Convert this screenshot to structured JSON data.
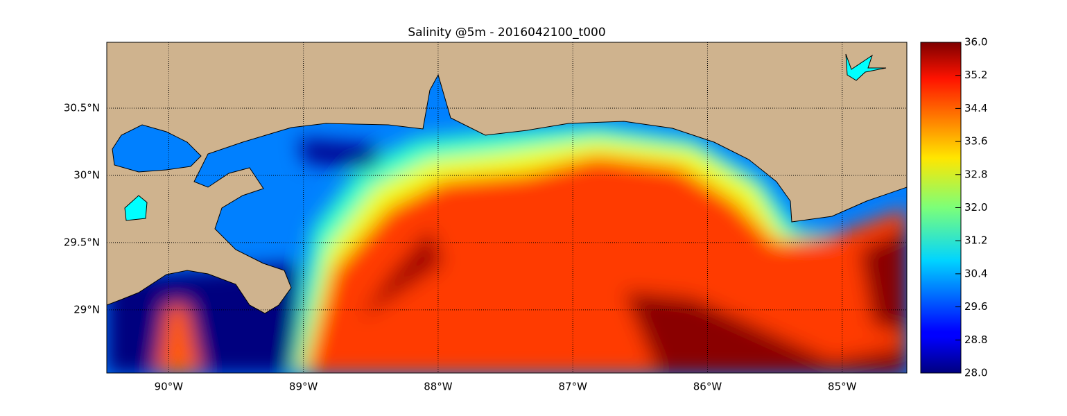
{
  "chart_data": {
    "type": "map",
    "title": "Salinity @5m - 2016042100_t000",
    "xlim": [
      -90.46,
      -84.52
    ],
    "ylim": [
      28.53,
      30.99
    ],
    "xticks": [
      {
        "value": -90,
        "label": "90°W"
      },
      {
        "value": -89,
        "label": "89°W"
      },
      {
        "value": -88,
        "label": "88°W"
      },
      {
        "value": -87,
        "label": "87°W"
      },
      {
        "value": -86,
        "label": "86°W"
      },
      {
        "value": -85,
        "label": "85°W"
      }
    ],
    "yticks": [
      {
        "value": 29,
        "label": "29°N"
      },
      {
        "value": 29.5,
        "label": "29.5°N"
      },
      {
        "value": 30,
        "label": "30°N"
      },
      {
        "value": 30.5,
        "label": "30.5°N"
      }
    ],
    "grid": true,
    "colorbar": {
      "lim": [
        28,
        36
      ],
      "ticks": [
        {
          "value": 28,
          "label": "28.0"
        },
        {
          "value": 28.8,
          "label": "28.8"
        },
        {
          "value": 29.6,
          "label": "29.6"
        },
        {
          "value": 30.4,
          "label": "30.4"
        },
        {
          "value": 31.2,
          "label": "31.2"
        },
        {
          "value": 32,
          "label": "32.0"
        },
        {
          "value": 32.8,
          "label": "32.8"
        },
        {
          "value": 33.6,
          "label": "33.6"
        },
        {
          "value": 34.4,
          "label": "34.4"
        },
        {
          "value": 35.2,
          "label": "35.2"
        },
        {
          "value": 36,
          "label": "36.0"
        }
      ]
    }
  }
}
